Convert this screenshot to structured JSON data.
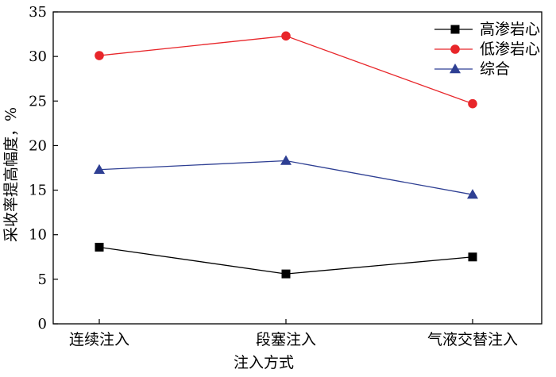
{
  "chart_data": {
    "type": "line",
    "categories": [
      "连续注入",
      "段塞注入",
      "气液交替注入"
    ],
    "xlabel": "注入方式",
    "ylabel": "采收率提高幅度，%",
    "ylim": [
      0,
      35
    ],
    "yticks": [
      0,
      5,
      10,
      15,
      20,
      25,
      30,
      35
    ],
    "grid": false,
    "legend_position": "top-right",
    "series": [
      {
        "name": "高渗岩心",
        "values": [
          8.6,
          5.6,
          7.5
        ],
        "color": "#000000",
        "marker": "square"
      },
      {
        "name": "低渗岩心",
        "values": [
          30.1,
          32.3,
          24.7
        ],
        "color": "#e8262a",
        "marker": "circle"
      },
      {
        "name": "综合",
        "values": [
          17.3,
          18.3,
          14.5
        ],
        "color": "#2e3f93",
        "marker": "triangle"
      }
    ]
  }
}
